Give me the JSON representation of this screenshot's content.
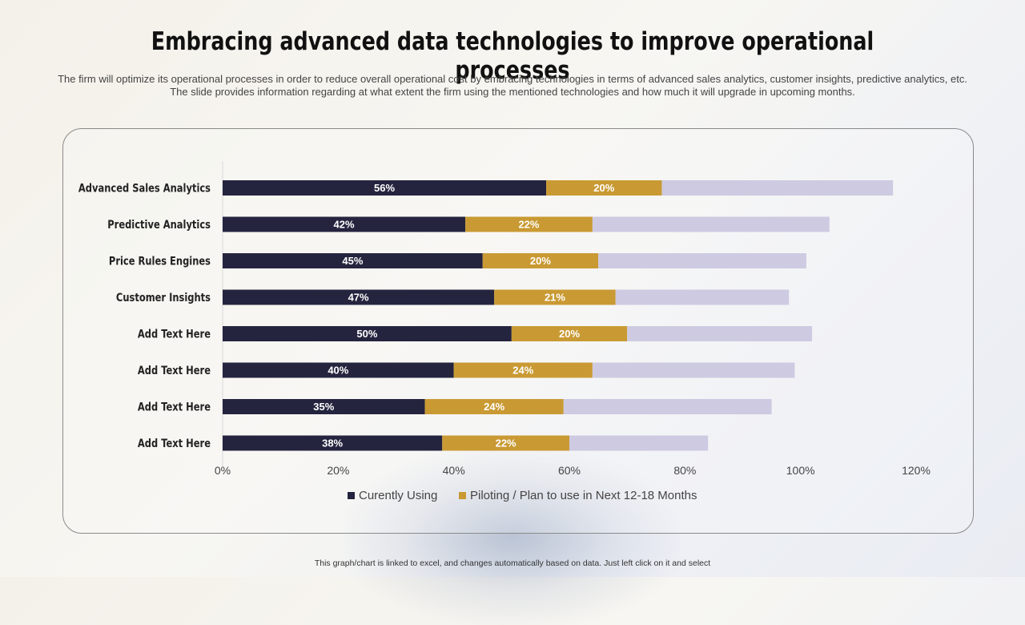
{
  "slide": {
    "title": "Embracing advanced data technologies to improve operational processes",
    "subtitle_line1": "The firm will optimize its operational processes in order to reduce overall operational cost by embracing technologies in terms of advanced sales analytics, customer insights, predictive analytics, etc.",
    "subtitle_line2": "The slide provides information regarding at what extent the firm using the mentioned technologies and how much it will upgrade in upcoming months.",
    "footer": "This graph/chart is linked to excel, and changes automatically based on data. Just left click on it and select"
  },
  "colors": {
    "series1": "#24243f",
    "series2": "#c99a33",
    "remainder": "#cdcae1",
    "axis": "#d9d9d9"
  },
  "chart_data": {
    "type": "bar",
    "orientation": "horizontal",
    "stacked": true,
    "categories": [
      "Advanced Sales Analytics",
      "Predictive Analytics",
      "Price Rules Engines",
      "Customer Insights",
      "Add Text Here",
      "Add Text Here",
      "Add Text Here",
      "Add Text Here"
    ],
    "series": [
      {
        "name": "Curently Using",
        "values": [
          56,
          42,
          45,
          47,
          50,
          40,
          35,
          38
        ],
        "labels": [
          "56%",
          "42%",
          "45%",
          "47%",
          "50%",
          "40%",
          "35%",
          "38%"
        ]
      },
      {
        "name": "Piloting / Plan to use in Next 12-18 Months",
        "values": [
          20,
          22,
          20,
          21,
          20,
          24,
          24,
          22
        ],
        "labels": [
          "20%",
          "22%",
          "20%",
          "21%",
          "20%",
          "24%",
          "24%",
          "22%"
        ]
      },
      {
        "name": "",
        "values": [
          40,
          41,
          36,
          30,
          32,
          35,
          36,
          24
        ],
        "labels": []
      }
    ],
    "xlim": [
      0,
      120
    ],
    "xticks": [
      "0%",
      "20%",
      "40%",
      "60%",
      "80%",
      "100%",
      "120%"
    ],
    "legend": [
      "Curently Using",
      "Piloting / Plan to use in Next 12-18 Months"
    ],
    "legend_position": "bottom",
    "grid": false
  }
}
